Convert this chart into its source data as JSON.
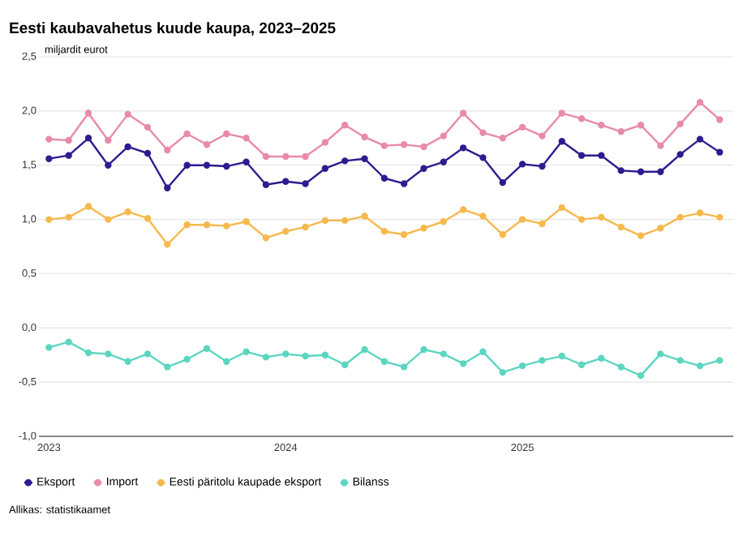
{
  "chart_data": {
    "type": "line",
    "title": "Eesti kaubavahetus kuude kaupa, 2023–2025",
    "ylabel": "miljardit eurot",
    "x": [
      "2023-01",
      "2023-02",
      "2023-03",
      "2023-04",
      "2023-05",
      "2023-06",
      "2023-07",
      "2023-08",
      "2023-09",
      "2023-10",
      "2023-11",
      "2023-12",
      "2024-01",
      "2024-02",
      "2024-03",
      "2024-04",
      "2024-05",
      "2024-06",
      "2024-07",
      "2024-08",
      "2024-09",
      "2024-10",
      "2024-11",
      "2024-12",
      "2025-01",
      "2025-02",
      "2025-03",
      "2025-04",
      "2025-05",
      "2025-06",
      "2025-07",
      "2025-08",
      "2025-09",
      "2025-10",
      "2025-11"
    ],
    "series": [
      {
        "name": "Eksport",
        "color": "#2c1d8f",
        "values": [
          1.56,
          1.59,
          1.75,
          1.5,
          1.67,
          1.61,
          1.29,
          1.5,
          1.5,
          1.49,
          1.53,
          1.32,
          1.35,
          1.33,
          1.47,
          1.54,
          1.56,
          1.38,
          1.33,
          1.47,
          1.53,
          1.66,
          1.57,
          1.34,
          1.51,
          1.49,
          1.72,
          1.59,
          1.59,
          1.45,
          1.44,
          1.44,
          1.6,
          1.74,
          1.62
        ]
      },
      {
        "name": "Import",
        "color": "#e88aab",
        "values": [
          1.74,
          1.73,
          1.98,
          1.73,
          1.97,
          1.85,
          1.64,
          1.79,
          1.69,
          1.79,
          1.75,
          1.58,
          1.58,
          1.58,
          1.71,
          1.87,
          1.76,
          1.68,
          1.69,
          1.67,
          1.77,
          1.98,
          1.8,
          1.75,
          1.85,
          1.77,
          1.98,
          1.93,
          1.87,
          1.81,
          1.87,
          1.68,
          1.88,
          2.08,
          1.92
        ]
      },
      {
        "name": "Eesti päritolu kaupade eksport",
        "color": "#f6b94d",
        "values": [
          1.0,
          1.02,
          1.12,
          1.0,
          1.07,
          1.01,
          0.77,
          0.95,
          0.95,
          0.94,
          0.98,
          0.83,
          0.89,
          0.93,
          0.99,
          0.99,
          1.03,
          0.89,
          0.86,
          0.92,
          0.98,
          1.09,
          1.03,
          0.86,
          1.0,
          0.96,
          1.11,
          1.0,
          1.02,
          0.93,
          0.85,
          0.92,
          1.02,
          1.06,
          1.02
        ]
      },
      {
        "name": "Bilanss",
        "color": "#5cd6c0",
        "values": [
          -0.18,
          -0.13,
          -0.23,
          -0.24,
          -0.31,
          -0.24,
          -0.36,
          -0.29,
          -0.19,
          -0.31,
          -0.22,
          -0.27,
          -0.24,
          -0.26,
          -0.25,
          -0.34,
          -0.2,
          -0.31,
          -0.36,
          -0.2,
          -0.24,
          -0.33,
          -0.22,
          -0.41,
          -0.35,
          -0.3,
          -0.26,
          -0.34,
          -0.28,
          -0.36,
          -0.44,
          -0.24,
          -0.3,
          -0.35,
          -0.3
        ]
      }
    ],
    "xlim": [
      "2022-12-16",
      "2025-11-22"
    ],
    "xticks": [
      {
        "value": "2023-01",
        "label": "2023"
      },
      {
        "value": "2024-01",
        "label": "2024"
      },
      {
        "value": "2025-01",
        "label": "2025"
      }
    ],
    "ylim": [
      -1.0,
      2.5
    ],
    "yticks": [
      {
        "value": -1.0,
        "label": "-1,0"
      },
      {
        "value": -0.5,
        "label": "-0,5"
      },
      {
        "value": 0.0,
        "label": "0,0"
      },
      {
        "value": 0.5,
        "label": "0,5"
      },
      {
        "value": 1.0,
        "label": "1,0"
      },
      {
        "value": 1.5,
        "label": "1,5"
      },
      {
        "value": 2.0,
        "label": "2,0"
      },
      {
        "value": 2.5,
        "label": "2,5"
      }
    ],
    "grid": "y",
    "legend": "bottom",
    "marker": "circle",
    "line_style": "solid",
    "annotations": [
      "Allikas: statistikaamet"
    ]
  }
}
